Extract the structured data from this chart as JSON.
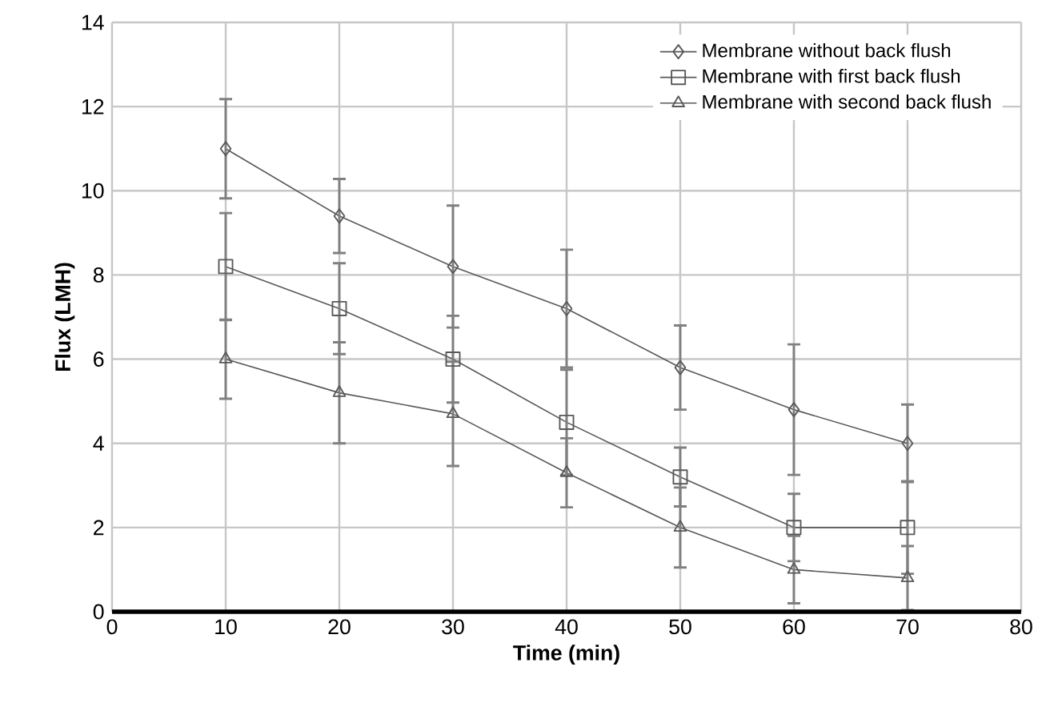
{
  "chart_data": {
    "type": "line",
    "xlabel": "Time (min)",
    "ylabel": "Flux (LMH)",
    "x": [
      10,
      20,
      30,
      40,
      50,
      60,
      70
    ],
    "xlim": [
      0,
      80
    ],
    "xticks": [
      0,
      10,
      20,
      30,
      40,
      50,
      60,
      70,
      80
    ],
    "ylim": [
      0,
      14
    ],
    "yticks": [
      0,
      2,
      4,
      6,
      8,
      10,
      12,
      14
    ],
    "grid": true,
    "legend": "top right",
    "line_style": "solid",
    "series": [
      {
        "name": "Membrane without back flush",
        "color": "#595959",
        "marker": "diamond",
        "values": [
          11.0,
          9.4,
          8.2,
          7.2,
          5.8,
          4.8,
          4.0
        ],
        "errors": [
          1.18,
          0.88,
          1.45,
          1.4,
          1.0,
          1.55,
          0.92
        ]
      },
      {
        "name": "Membrane with first back flush",
        "color": "#595959",
        "marker": "square",
        "values": [
          8.2,
          7.2,
          6.0,
          4.5,
          3.2,
          2.0,
          2.0
        ],
        "errors": [
          1.27,
          1.08,
          1.03,
          1.25,
          0.7,
          0.8,
          1.1
        ]
      },
      {
        "name": "Membrane with second back flush",
        "color": "#595959",
        "marker": "triangle",
        "values": [
          6.0,
          5.2,
          4.7,
          3.3,
          2.0,
          1.0,
          0.8
        ],
        "errors": [
          0.94,
          1.2,
          1.24,
          0.82,
          0.95,
          0.8,
          0.76
        ]
      }
    ]
  }
}
